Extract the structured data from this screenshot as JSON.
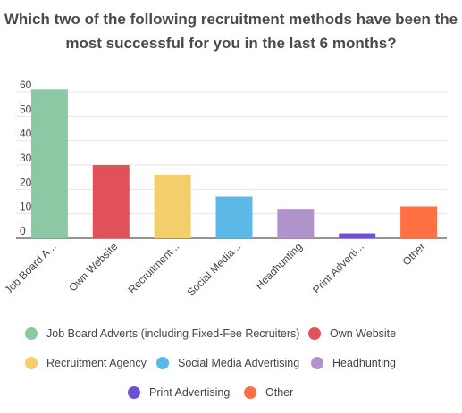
{
  "chart_data": {
    "type": "bar",
    "title_lines": [
      "Which two of the following recruitment methods have been the",
      "most successful for you in the last 6 months?"
    ],
    "categories_full": [
      "Job Board Adverts (including Fixed-Fee Recruiters)",
      "Own Website",
      "Recruitment Agency",
      "Social Media Advertising",
      "Headhunting",
      "Print Advertising",
      "Other"
    ],
    "tick_labels": [
      "Job Board A...",
      "Own Website",
      "Recruitment...",
      "Social Media...",
      "Headhunting",
      "Print Adverti...",
      "Other"
    ],
    "values": [
      61,
      30,
      26,
      17,
      12,
      2,
      13
    ],
    "colors": [
      "#8dc8a5",
      "#e05159",
      "#f3cf6c",
      "#5cb8e6",
      "#b193cc",
      "#6e4fd8",
      "#ff7043"
    ],
    "yticks": [
      0,
      10,
      20,
      30,
      40,
      50,
      60
    ],
    "ylim": [
      0,
      60
    ],
    "grid": true,
    "legend_position": "bottom"
  },
  "legend": [
    {
      "label": "Job Board Adverts (including Fixed-Fee Recruiters)",
      "color": "#8dc8a5"
    },
    {
      "label": "Own Website",
      "color": "#e05159"
    },
    {
      "label": "Recruitment Agency",
      "color": "#f3cf6c"
    },
    {
      "label": "Social Media Advertising",
      "color": "#5cb8e6"
    },
    {
      "label": "Headhunting",
      "color": "#b193cc"
    },
    {
      "label": "Print Advertising",
      "color": "#6e4fd8"
    },
    {
      "label": "Other",
      "color": "#ff7043"
    }
  ]
}
